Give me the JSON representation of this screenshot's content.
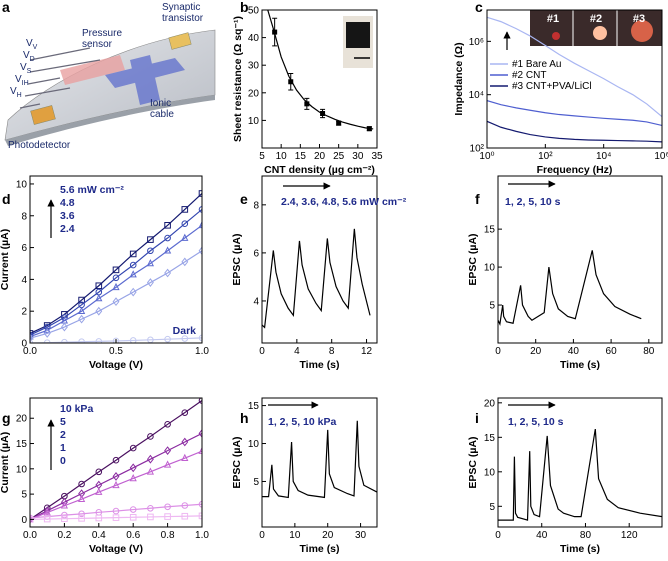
{
  "diagram": {
    "label": "a",
    "texts": [
      [
        "Pressure",
        "sensor"
      ],
      [
        "Synaptic",
        "transistor"
      ],
      [
        "Ionic",
        "cable"
      ],
      [
        "Photodetector"
      ]
    ],
    "voltages": [
      {
        "text": "V",
        "sub": "V"
      },
      {
        "text": "V",
        "sub": "D"
      },
      {
        "text": "V",
        "sub": "S"
      },
      {
        "text": "V",
        "sub": "IH"
      },
      {
        "text": "V",
        "sub": "H"
      }
    ]
  },
  "chart_data": [
    {
      "type": "scatter",
      "label": "b",
      "xlabel": "CNT density (µg cm⁻²)",
      "ylabel": "Sheet resistance (Ω sq⁻¹)",
      "xlim": [
        5,
        35
      ],
      "xticks": [
        5,
        10,
        15,
        20,
        25,
        30,
        35
      ],
      "ylim": [
        0,
        50
      ],
      "yticks": [
        10,
        20,
        30,
        40,
        50
      ],
      "series": [
        {
          "color": "#000000",
          "marker": "square-filled",
          "x": [
            8.3,
            12.5,
            16.7,
            20.8,
            25,
            33
          ],
          "values": [
            42,
            24,
            16,
            12.5,
            9,
            7
          ],
          "errors": [
            5,
            3,
            2,
            1.5,
            0.7,
            0.7
          ]
        },
        {
          "type": "line",
          "color": "#000000",
          "x": [
            6.5,
            8,
            10,
            12,
            14,
            16,
            18,
            20,
            22,
            24,
            26,
            28,
            30,
            32,
            34
          ],
          "values": [
            50,
            43,
            33,
            26,
            21,
            17.5,
            15,
            13,
            11.6,
            10.4,
            9.4,
            8.6,
            7.9,
            7.3,
            6.9
          ]
        }
      ]
    },
    {
      "type": "line",
      "label": "c",
      "xlabel": "Frequency (Hz)",
      "ylabel": "Impedance (Ω)",
      "xscale": "log",
      "yscale": "log",
      "xlim": [
        1,
        1000000
      ],
      "xticks": [
        {
          "value": 1,
          "label": "10⁰"
        },
        {
          "value": 100,
          "label": "10²"
        },
        {
          "value": 10000,
          "label": "10⁴"
        },
        {
          "value": 1000000,
          "label": "10⁶"
        }
      ],
      "ylim": [
        100,
        15000000
      ],
      "yticks": [
        {
          "value": 100,
          "label": "10²"
        },
        {
          "value": 10000,
          "label": "10⁴"
        },
        {
          "value": 1000000,
          "label": "10⁶"
        }
      ],
      "x": [
        1,
        3,
        10,
        30,
        100,
        300,
        1000,
        3000,
        10000,
        30000,
        100000,
        300000,
        1000000
      ],
      "legend": "center left",
      "inset_labels": [
        "#1",
        "#2",
        "#3"
      ],
      "series": [
        {
          "name": "#1 Bare Au",
          "color": "#a9b6f2",
          "values": [
            8000000,
            5500000,
            3000000,
            1600000,
            700000,
            320000,
            150000,
            80000,
            40000,
            20000,
            10000,
            4500,
            1500
          ]
        },
        {
          "name": "#2 CNT",
          "color": "#4f5fd0",
          "values": [
            6000,
            4200,
            3200,
            2600,
            2100,
            1800,
            1600,
            1450,
            1300,
            1200,
            1100,
            950,
            700
          ]
        },
        {
          "name": "#3 CNT+PVA/LiCl",
          "color": "#141a70",
          "values": [
            1000,
            600,
            420,
            320,
            260,
            230,
            210,
            200,
            195,
            190,
            185,
            180,
            170
          ]
        }
      ]
    },
    {
      "type": "line",
      "label": "d",
      "xlabel": "Voltage (V)",
      "ylabel": "Current (µA)",
      "xlim": [
        0,
        1
      ],
      "xticks": [
        {
          "value": 0,
          "label": "0.0"
        },
        {
          "value": 0.5,
          "label": "0.5"
        },
        {
          "value": 1,
          "label": "1.0"
        }
      ],
      "ylim": [
        0,
        10.5
      ],
      "yticks": [
        0,
        2,
        4,
        6,
        8,
        10
      ],
      "x": [
        0,
        0.1,
        0.2,
        0.3,
        0.4,
        0.5,
        0.6,
        0.7,
        0.8,
        0.9,
        1
      ],
      "series": [
        {
          "name": "5.6 mW cm⁻²",
          "color": "#141a70",
          "marker": "square",
          "values": [
            0.6,
            1.1,
            1.8,
            2.7,
            3.6,
            4.6,
            5.6,
            6.5,
            7.4,
            8.4,
            9.4
          ]
        },
        {
          "name": "4.8",
          "color": "#3346b0",
          "marker": "circle",
          "values": [
            0.5,
            1.0,
            1.6,
            2.4,
            3.2,
            4.1,
            4.9,
            5.8,
            6.6,
            7.5,
            8.4
          ]
        },
        {
          "name": "3.6",
          "color": "#5c6bd0",
          "marker": "triangle",
          "values": [
            0.4,
            0.8,
            1.4,
            2.0,
            2.8,
            3.5,
            4.3,
            5.0,
            5.8,
            6.6,
            7.4
          ]
        },
        {
          "name": "2.4",
          "color": "#98a4e6",
          "marker": "diamond",
          "values": [
            0.3,
            0.6,
            1.0,
            1.5,
            2.0,
            2.6,
            3.2,
            3.8,
            4.4,
            5.1,
            5.8
          ]
        },
        {
          "name": "Dark",
          "color": "#c3c9f0",
          "marker": "circle",
          "values": [
            0,
            0.02,
            0.05,
            0.08,
            0.1,
            0.13,
            0.16,
            0.2,
            0.24,
            0.28,
            0.32
          ]
        }
      ]
    },
    {
      "type": "line",
      "label": "e",
      "xlabel": "Time (s)",
      "ylabel": "EPSC (µA)",
      "annotation": "2.4, 3.6, 4.8, 5.6 mW cm⁻²",
      "xlim": [
        0,
        13.2
      ],
      "xticks": [
        0,
        4,
        8,
        12
      ],
      "ylim": [
        2.25,
        9.2
      ],
      "yticks": [
        4,
        6,
        8
      ],
      "series": [
        {
          "color": "#000000",
          "x": [
            0,
            0.3,
            1.3,
            1.6,
            2.2,
            3.0,
            3.6,
            4.3,
            4.6,
            5.3,
            6.2,
            6.8,
            7.5,
            7.8,
            8.5,
            9.3,
            9.9,
            10.6,
            10.9,
            11.5,
            12.4
          ],
          "values": [
            3.0,
            2.9,
            6.1,
            5.2,
            4.3,
            3.7,
            3.4,
            6.5,
            5.5,
            4.5,
            3.9,
            3.6,
            6.6,
            5.6,
            4.6,
            4.0,
            3.7,
            7.0,
            5.8,
            4.7,
            3.4
          ]
        }
      ]
    },
    {
      "type": "line",
      "label": "f",
      "xlabel": "Time (s)",
      "ylabel": "EPSC (µA)",
      "annotation": "1, 2, 5, 10 s",
      "xlim": [
        0,
        87
      ],
      "xticks": [
        0,
        20,
        40,
        60,
        80
      ],
      "ylim": [
        0,
        22
      ],
      "yticks": [
        5,
        10,
        15
      ],
      "series": [
        {
          "color": "#000000",
          "x": [
            0,
            1,
            2.5,
            3,
            4.5,
            8,
            12,
            13,
            16,
            18,
            24.5,
            27,
            29,
            32,
            37,
            41,
            50,
            52,
            56,
            62,
            70,
            76
          ],
          "values": [
            3,
            2.5,
            5,
            3.5,
            2.8,
            2.6,
            7.6,
            5,
            3.5,
            3,
            4,
            10,
            6.5,
            4.5,
            3.5,
            3.2,
            12.2,
            9,
            6.5,
            4.8,
            3.8,
            3.2
          ]
        }
      ]
    },
    {
      "type": "line",
      "label": "g",
      "xlabel": "Voltage (V)",
      "ylabel": "Current (µA)",
      "xlim": [
        0,
        1
      ],
      "xticks": [
        {
          "value": 0,
          "label": "0.0"
        },
        {
          "value": 0.2,
          "label": "0.2"
        },
        {
          "value": 0.4,
          "label": "0.4"
        },
        {
          "value": 0.6,
          "label": "0.6"
        },
        {
          "value": 0.8,
          "label": "0.8"
        },
        {
          "value": 1,
          "label": "1.0"
        }
      ],
      "ylim": [
        -1.5,
        24
      ],
      "yticks": [
        0,
        5,
        10,
        15,
        20
      ],
      "x": [
        0,
        0.1,
        0.2,
        0.3,
        0.4,
        0.5,
        0.6,
        0.7,
        0.8,
        0.9,
        1
      ],
      "series": [
        {
          "name": "10 kPa",
          "color": "#4a1060",
          "marker": "circle",
          "values": [
            0,
            2.3,
            4.6,
            7,
            9.4,
            11.7,
            14.1,
            16.4,
            18.8,
            21.1,
            23.5
          ]
        },
        {
          "name": "5",
          "color": "#8a2aa0",
          "marker": "diamond",
          "values": [
            0,
            1.7,
            3.4,
            5.1,
            6.8,
            8.5,
            10.2,
            11.9,
            13.6,
            15.3,
            17
          ]
        },
        {
          "name": "2",
          "color": "#c060d0",
          "marker": "triangle",
          "values": [
            0,
            1.35,
            2.7,
            4,
            5.4,
            6.75,
            8.1,
            9.4,
            10.8,
            12.1,
            13.5
          ]
        },
        {
          "name": "1",
          "color": "#dc90e6",
          "marker": "circle",
          "values": [
            0.3,
            0.55,
            0.85,
            1.1,
            1.4,
            1.65,
            1.95,
            2.2,
            2.5,
            2.75,
            3
          ]
        },
        {
          "name": "0",
          "color": "#eeb8f2",
          "marker": "square",
          "values": [
            0,
            0.07,
            0.14,
            0.21,
            0.28,
            0.35,
            0.42,
            0.49,
            0.56,
            0.63,
            0.7
          ]
        }
      ]
    },
    {
      "type": "line",
      "label": "h",
      "xlabel": "Time (s)",
      "ylabel": "EPSC (µA)",
      "annotation": "1, 2, 5, 10 kPa",
      "xlim": [
        0,
        35
      ],
      "xticks": [
        0,
        10,
        20,
        30
      ],
      "ylim": [
        -1,
        16
      ],
      "yticks": [
        5,
        10,
        15
      ],
      "series": [
        {
          "color": "#000000",
          "x": [
            0,
            2,
            3,
            3.5,
            5,
            8,
            9,
            9.5,
            11,
            14,
            19,
            20,
            20.5,
            22,
            26,
            28,
            29,
            29.5,
            31,
            35
          ],
          "values": [
            3,
            3,
            7.2,
            4,
            3.1,
            2.9,
            10.2,
            5,
            3.8,
            3.2,
            2.9,
            11.8,
            6,
            4.2,
            3.4,
            3.1,
            13,
            7,
            4.5,
            3.6
          ]
        }
      ]
    },
    {
      "type": "line",
      "label": "i",
      "xlabel": "Time (s)",
      "ylabel": "EPSC (µA)",
      "annotation": "1, 2, 5, 10 s",
      "xlim": [
        0,
        150
      ],
      "xticks": [
        0,
        40,
        80,
        120
      ],
      "ylim": [
        2,
        20.7
      ],
      "yticks": [
        5,
        10,
        15,
        20
      ],
      "series": [
        {
          "color": "#000000",
          "x": [
            0,
            14,
            15,
            16,
            18,
            27,
            29,
            30,
            33,
            38,
            45,
            48,
            55,
            60,
            70,
            76,
            89,
            92,
            100,
            110,
            130,
            150
          ],
          "values": [
            3,
            3,
            12.2,
            4,
            3.4,
            3,
            13,
            5,
            3.8,
            3.5,
            15.2,
            8,
            4.6,
            4,
            3.5,
            3.5,
            16.2,
            9,
            6,
            4.8,
            4,
            3.5
          ]
        }
      ]
    }
  ]
}
